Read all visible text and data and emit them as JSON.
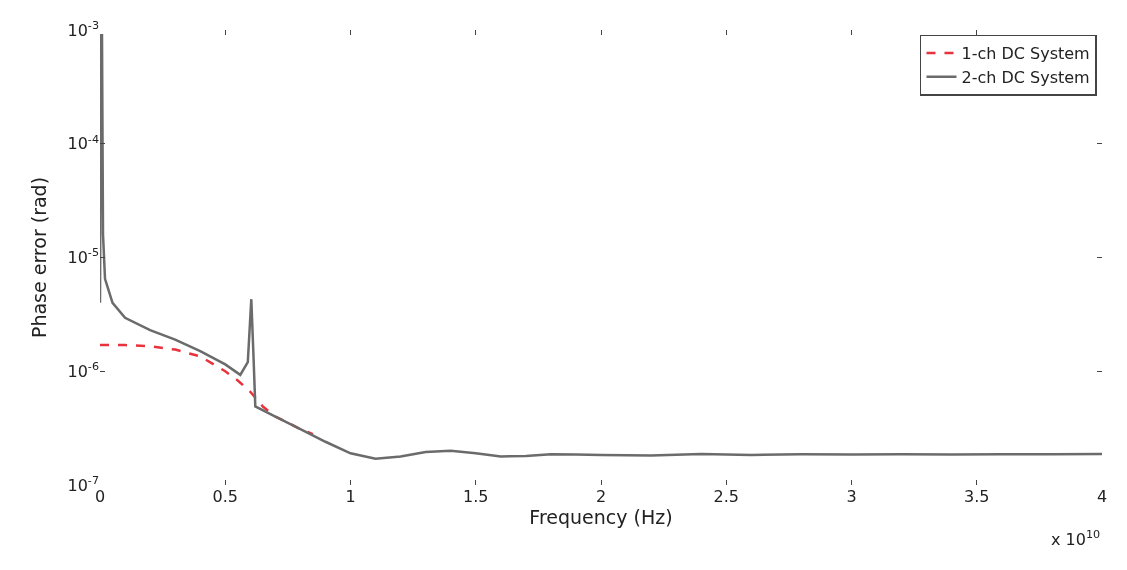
{
  "chart_data": {
    "type": "line",
    "xlabel": "Frequency (Hz)",
    "ylabel": "Phase error (rad)",
    "log": "y",
    "legend": "top right",
    "xlim": [
      0,
      4
    ],
    "xticks": [
      0,
      0.5,
      1,
      1.5,
      2,
      2.5,
      3,
      3.5,
      4
    ],
    "ylim": [
      1e-07,
      0.001
    ],
    "yticks": [
      {
        "value": 1e-07,
        "label": "10$^{-7}$"
      },
      {
        "value": 1e-06,
        "label": "10$^{-6}$"
      },
      {
        "value": 1e-05,
        "label": "10$^{-5}$"
      },
      {
        "value": 0.0001,
        "label": "10$^{-4}$"
      },
      {
        "value": 0.001,
        "label": "10$^{-3}$"
      }
    ],
    "annotations": [
      "x 10$^{10}$"
    ],
    "series": [
      {
        "name": "1-ch DC System",
        "color": "#e8323c",
        "line_style": "dashed",
        "x": [
          0,
          0.1,
          0.2,
          0.3,
          0.4,
          0.5,
          0.55,
          0.6,
          0.65,
          0.7,
          0.8,
          0.85
        ],
        "values": [
          1.7e-06,
          1.7e-06,
          1.66e-06,
          1.55e-06,
          1.35e-06,
          1e-06,
          8.3e-07,
          6.6e-07,
          4.9e-07,
          4e-07,
          3.1e-07,
          2.8e-07
        ]
      },
      {
        "name": "2-ch DC System",
        "color": "#6b6b6b",
        "line_style": "solid",
        "x": [
          0,
          0.004,
          0.008,
          0.012,
          0.02,
          0.05,
          0.1,
          0.2,
          0.3,
          0.4,
          0.5,
          0.56,
          0.59,
          0.604,
          0.612,
          0.62,
          0.7,
          0.8,
          0.9,
          1.0,
          1.1,
          1.2,
          1.3,
          1.4,
          1.5,
          1.6,
          1.7,
          1.8,
          1.9,
          2.0,
          2.2,
          2.4,
          2.6,
          2.8,
          3.0,
          3.2,
          3.4,
          3.6,
          3.8,
          4.0
        ],
        "values": [
          4e-06,
          0.0009,
          0.0009,
          1.6e-05,
          6.5e-06,
          4e-06,
          2.95e-06,
          2.3e-06,
          1.9e-06,
          1.5e-06,
          1.15e-06,
          9.3e-07,
          1.2e-06,
          4.3e-06,
          1.5e-06,
          4.9e-07,
          4e-07,
          3.1e-07,
          2.4e-07,
          1.9e-07,
          1.7e-07,
          1.78e-07,
          1.95e-07,
          2e-07,
          1.9e-07,
          1.78e-07,
          1.8e-07,
          1.86e-07,
          1.85e-07,
          1.84e-07,
          1.82e-07,
          1.87e-07,
          1.84e-07,
          1.86e-07,
          1.85e-07,
          1.86e-07,
          1.85e-07,
          1.86e-07,
          1.86e-07,
          1.87e-07
        ]
      }
    ]
  }
}
